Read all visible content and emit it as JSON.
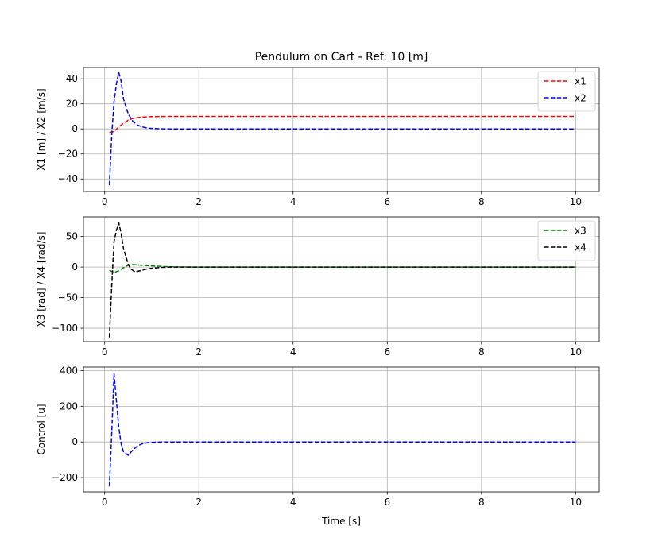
{
  "chart_data": [
    {
      "type": "line",
      "title": "Pendulum on Cart - Ref: 10 [m]",
      "xlabel": "",
      "ylabel": "X1 [m] / X2 [m/s]",
      "xlim": [
        -0.45,
        10.5
      ],
      "ylim": [
        -50,
        49
      ],
      "xticks": [
        0,
        2,
        4,
        6,
        8,
        10
      ],
      "yticks": [
        -40,
        -20,
        0,
        20,
        40
      ],
      "grid": true,
      "legend": "top-right",
      "series": [
        {
          "name": "x1",
          "color": "#ff0000",
          "style": "dashed",
          "x": [
            0.1,
            0.2,
            0.3,
            0.4,
            0.5,
            0.6,
            0.7,
            0.8,
            0.9,
            1.0,
            1.2,
            1.4,
            1.6,
            2.0,
            3.0,
            4.0,
            6.0,
            8.0,
            10.0
          ],
          "y": [
            -3,
            -2,
            1.5,
            4.5,
            7,
            8.3,
            9,
            9.4,
            9.6,
            9.75,
            9.9,
            9.95,
            10,
            10,
            10,
            10,
            10,
            10,
            10
          ]
        },
        {
          "name": "x2",
          "color": "#0000ff",
          "style": "dashed",
          "x": [
            0.1,
            0.15,
            0.2,
            0.25,
            0.3,
            0.35,
            0.4,
            0.5,
            0.6,
            0.7,
            0.8,
            0.9,
            1.0,
            1.2,
            1.4,
            1.6,
            2.0,
            3.0,
            4.0,
            6.0,
            8.0,
            10.0
          ],
          "y": [
            -45,
            -5,
            22,
            36,
            45,
            38,
            24,
            12,
            6,
            3,
            1.6,
            0.8,
            0.4,
            0.1,
            0.02,
            0,
            0,
            0,
            0,
            0,
            0,
            0
          ]
        }
      ]
    },
    {
      "type": "line",
      "title": "",
      "xlabel": "",
      "ylabel": "X3 [rad] / X4 [rad/s]",
      "xlim": [
        -0.45,
        10.5
      ],
      "ylim": [
        -122,
        82
      ],
      "xticks": [
        0,
        2,
        4,
        6,
        8,
        10
      ],
      "yticks": [
        -100,
        -50,
        0,
        50
      ],
      "grid": true,
      "legend": "top-right",
      "series": [
        {
          "name": "x3",
          "color": "#008000",
          "style": "dashed",
          "x": [
            0.1,
            0.2,
            0.3,
            0.4,
            0.5,
            0.6,
            0.7,
            0.8,
            0.9,
            1.0,
            1.2,
            1.4,
            1.6,
            2.0,
            3.0,
            4.0,
            6.0,
            8.0,
            10.0
          ],
          "y": [
            -5,
            -9,
            -6,
            -1,
            3,
            4,
            3.5,
            3,
            2.5,
            2,
            1,
            0.5,
            0.2,
            0,
            0,
            0,
            0,
            0,
            0
          ]
        },
        {
          "name": "x4",
          "color": "#000000",
          "style": "dashed",
          "x": [
            0.1,
            0.15,
            0.2,
            0.25,
            0.3,
            0.35,
            0.4,
            0.5,
            0.55,
            0.65,
            0.8,
            0.9,
            1.0,
            1.2,
            1.4,
            1.6,
            2.0,
            3.0,
            4.0,
            6.0,
            8.0,
            10.0
          ],
          "y": [
            -115,
            -30,
            42,
            60,
            72,
            55,
            30,
            5,
            -3,
            -8,
            -5,
            -3,
            -2,
            -0.5,
            0,
            0,
            0,
            0,
            0,
            0,
            0,
            0
          ]
        }
      ]
    },
    {
      "type": "line",
      "title": "",
      "xlabel": "Time [s]",
      "ylabel": "Control [u]",
      "xlim": [
        -0.45,
        10.5
      ],
      "ylim": [
        -280,
        420
      ],
      "xticks": [
        0,
        2,
        4,
        6,
        8,
        10
      ],
      "yticks": [
        -200,
        0,
        200,
        400
      ],
      "grid": true,
      "legend": "",
      "series": [
        {
          "name": "",
          "color": "#0000ff",
          "style": "dashed",
          "x": [
            0.1,
            0.15,
            0.2,
            0.25,
            0.3,
            0.35,
            0.4,
            0.5,
            0.6,
            0.7,
            0.8,
            0.9,
            1.0,
            1.2,
            1.4,
            1.6,
            2.0,
            3.0,
            4.0,
            6.0,
            8.0,
            10.0
          ],
          "y": [
            -250,
            50,
            385,
            230,
            80,
            -10,
            -55,
            -75,
            -45,
            -22,
            -10,
            -5,
            -2,
            -0.5,
            0,
            0,
            0,
            0,
            0,
            0,
            0,
            0
          ]
        }
      ]
    }
  ]
}
